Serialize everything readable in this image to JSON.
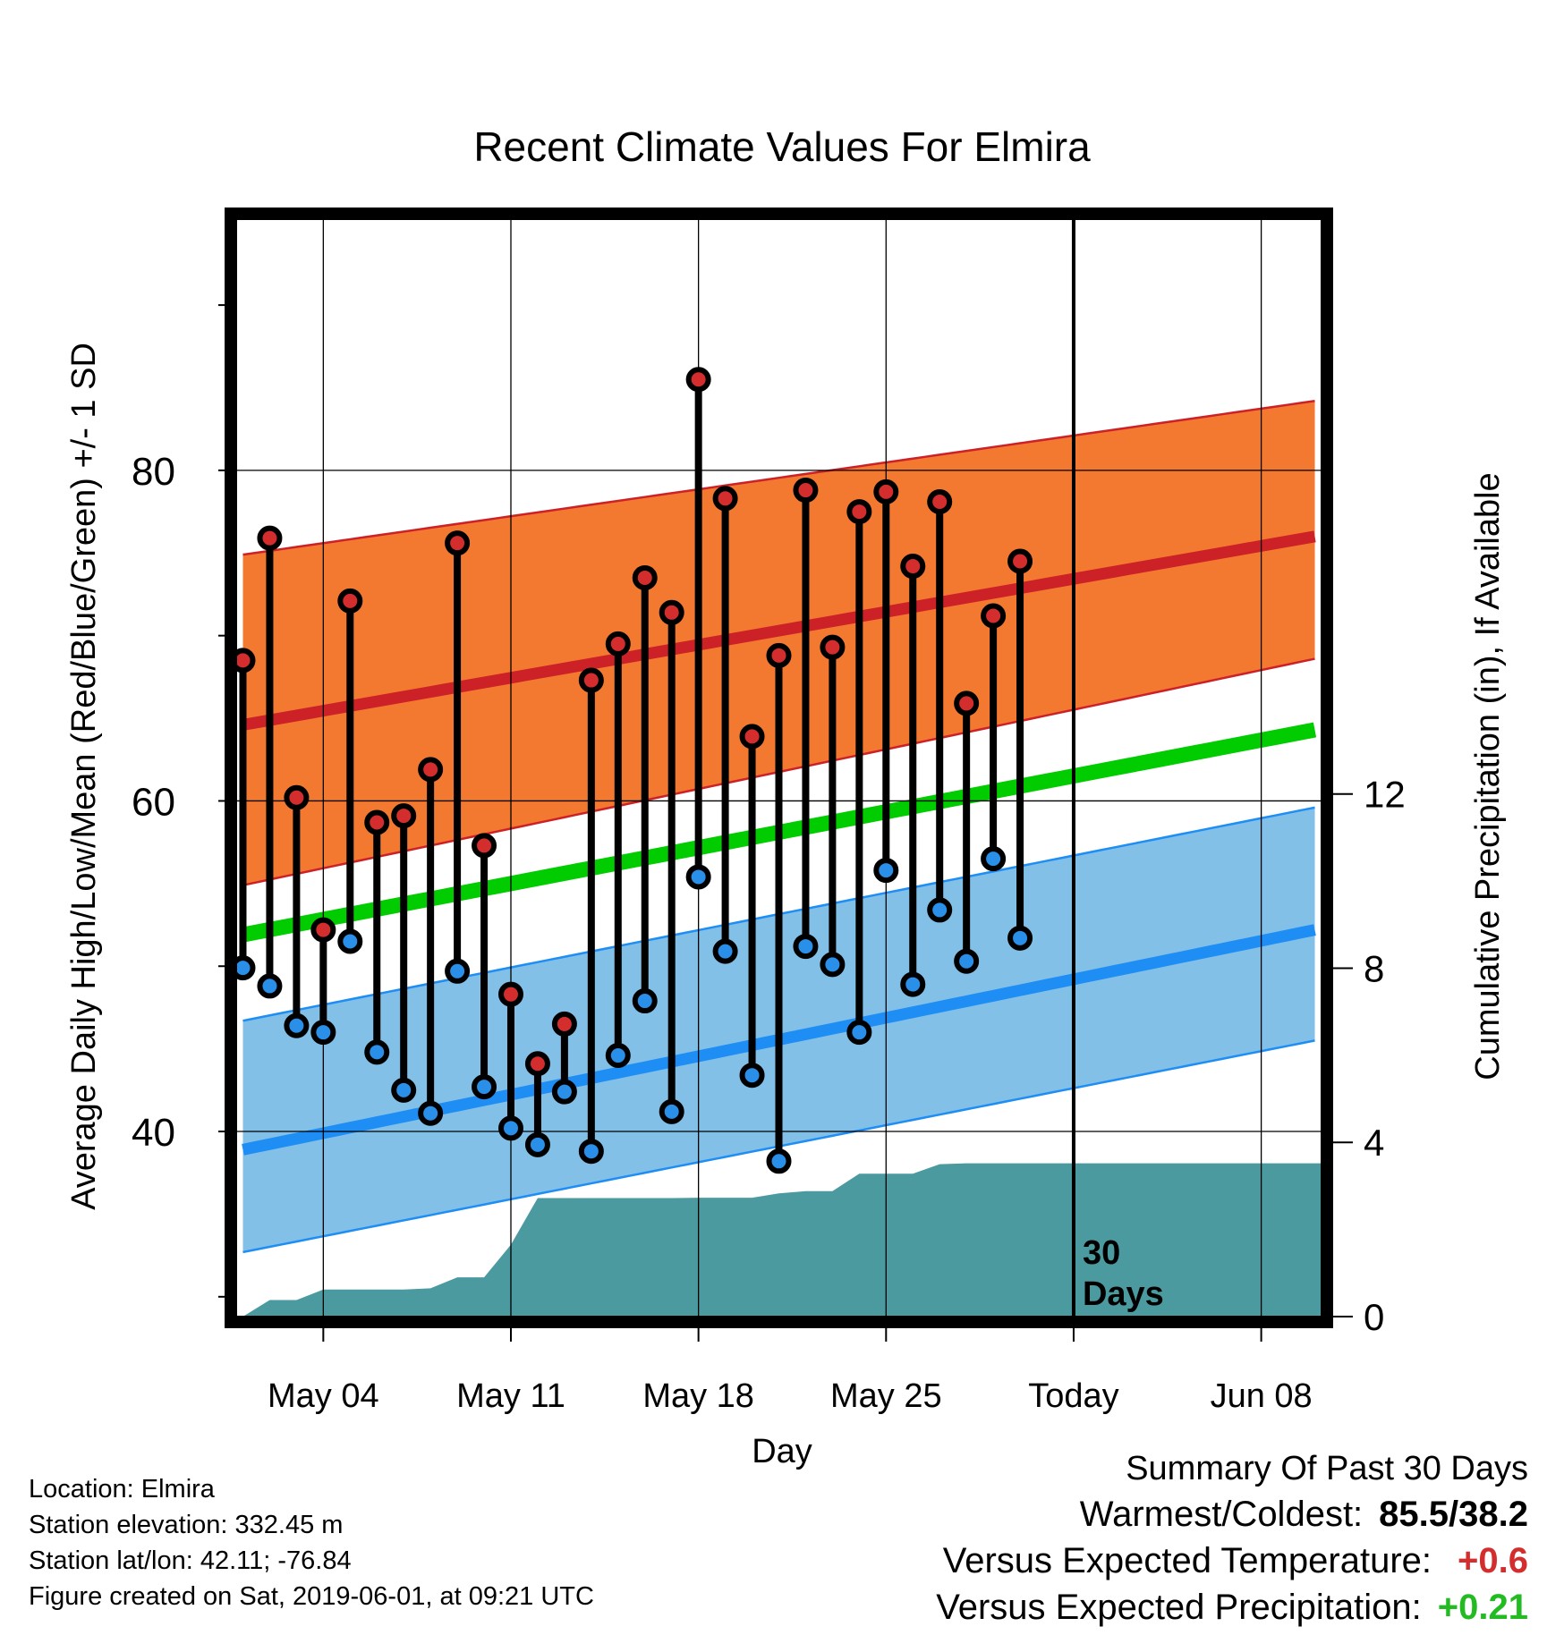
{
  "chart_data": {
    "type": "line",
    "title": "Recent Climate Values For Elmira",
    "xlabel": "Day",
    "ylabel_left": "Average Daily High/Low/Mean (Red/Blue/Green) +/- 1 SD",
    "ylabel_right": "Cumulative Precipitation (in), If Available",
    "x_tick_labels": [
      "May 04",
      "May 11",
      "May 18",
      "May 25",
      "Today",
      "Jun 08"
    ],
    "x_tick_days": [
      4,
      11,
      18,
      25,
      32,
      39
    ],
    "xlim_days": [
      0.75,
      41.25
    ],
    "y_left_ticks": [
      40,
      60,
      80
    ],
    "y_left_range": [
      28.8,
      95.2
    ],
    "y_right_ticks": [
      0,
      4,
      8,
      12
    ],
    "y_right_range": [
      0,
      25.2
    ],
    "today_day": 32,
    "today_label_lines": [
      "30",
      "Days"
    ],
    "grid": true,
    "colors": {
      "high_band": "#f47930",
      "high_mean": "#cd2128",
      "low_band": "#82c0e8",
      "low_mean": "#1e8ef5",
      "mean": "#00cc00",
      "precip": "#4a9aa0",
      "high_marker": "#d42d2d",
      "low_marker": "#2a8fe8"
    },
    "normals": {
      "days": [
        1,
        41
      ],
      "high_mean": [
        64.6,
        76.0
      ],
      "high_upper": [
        74.9,
        84.2
      ],
      "high_lower": [
        54.9,
        68.6
      ],
      "low_mean": [
        38.9,
        52.2
      ],
      "low_upper": [
        46.7,
        59.6
      ],
      "low_lower": [
        32.7,
        45.5
      ],
      "mean": [
        51.9,
        64.3
      ]
    },
    "series": [
      {
        "name": "High",
        "days": [
          1,
          2,
          3,
          4,
          5,
          6,
          7,
          8,
          9,
          10,
          11,
          12,
          13,
          14,
          15,
          16,
          17,
          18,
          19,
          20,
          21,
          22,
          23,
          24,
          25,
          26,
          27,
          28,
          29,
          30,
          31
        ],
        "values": [
          68.5,
          75.9,
          60.2,
          52.2,
          72.1,
          58.7,
          59.1,
          61.9,
          75.6,
          57.3,
          48.3,
          44.1,
          46.5,
          67.3,
          69.5,
          73.5,
          71.4,
          85.5,
          78.3,
          63.9,
          68.8,
          78.8,
          69.3,
          77.5,
          78.7,
          74.2,
          78.1,
          65.9,
          71.2,
          74.5,
          null
        ],
        "color": "#d42d2d"
      },
      {
        "name": "Low",
        "days": [
          1,
          2,
          3,
          4,
          5,
          6,
          7,
          8,
          9,
          10,
          11,
          12,
          13,
          14,
          15,
          16,
          17,
          18,
          19,
          20,
          21,
          22,
          23,
          24,
          25,
          26,
          27,
          28,
          29,
          30,
          31
        ],
        "values": [
          49.9,
          48.8,
          46.4,
          46.0,
          51.5,
          44.8,
          42.5,
          41.1,
          49.7,
          42.7,
          40.2,
          39.2,
          42.4,
          38.8,
          44.6,
          47.9,
          41.2,
          55.4,
          50.9,
          43.4,
          38.2,
          51.2,
          50.1,
          46.0,
          55.8,
          48.9,
          53.4,
          50.3,
          56.5,
          51.7,
          null
        ],
        "color": "#2a8fe8"
      },
      {
        "name": "Cumulative Precipitation",
        "days": [
          1,
          2,
          3,
          4,
          5,
          6,
          7,
          8,
          9,
          10,
          11,
          12,
          13,
          14,
          15,
          16,
          17,
          18,
          19,
          20,
          21,
          22,
          23,
          24,
          25,
          26,
          27,
          28,
          29,
          30,
          31,
          32,
          33,
          34,
          35,
          36,
          37,
          38,
          39,
          40,
          41
        ],
        "values": [
          0,
          0.38,
          0.38,
          0.62,
          0.62,
          0.62,
          0.62,
          0.65,
          0.9,
          0.9,
          1.65,
          2.72,
          2.72,
          2.72,
          2.72,
          2.72,
          2.72,
          2.73,
          2.73,
          2.73,
          2.83,
          2.88,
          2.88,
          3.28,
          3.28,
          3.28,
          3.5,
          3.52,
          3.52,
          3.52,
          3.52,
          3.52,
          3.52,
          3.52,
          3.52,
          3.52,
          3.52,
          3.52,
          3.52,
          3.52,
          3.52
        ],
        "color": "#4a9aa0"
      }
    ]
  },
  "footer": {
    "location": "Location: Elmira",
    "elevation": "Station elevation: 332.45 m",
    "latlon": "Station lat/lon: 42.11; -76.84",
    "created": "Figure created on Sat, 2019-06-01, at 09:21 UTC"
  },
  "summary": {
    "title": "Summary Of Past 30 Days",
    "warmest_coldest_label": "Warmest/Coldest:",
    "warmest_coldest_value": "85.5/38.2",
    "temp_label": "Versus Expected Temperature:",
    "temp_value": "+0.6",
    "temp_color": "#d42d2d",
    "precip_label": "Versus Expected Precipitation:",
    "precip_value": "+0.21",
    "precip_color": "#22bb22"
  }
}
